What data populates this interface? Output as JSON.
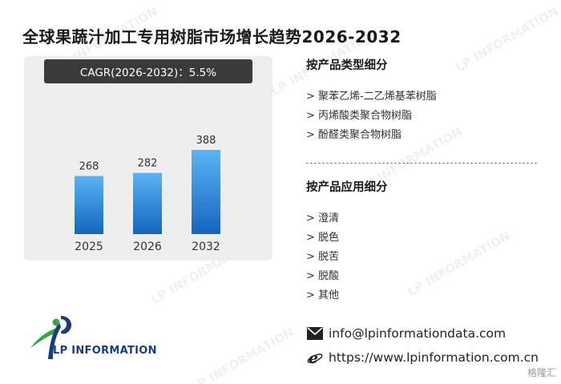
{
  "title": "全球果蔬汁加工专用树脂市场增长趋势2026-2032",
  "cagr": "CAGR(2026-2032)：5.5%",
  "colors": {
    "bar_top": "#5ab4f2",
    "bar_bottom": "#1565c0",
    "panel": "#eeeeee",
    "badge": "#3a3a3a"
  },
  "chart_data": {
    "type": "bar",
    "categories": [
      "2025",
      "2026",
      "2032"
    ],
    "values": [
      268,
      282,
      388
    ],
    "title": "",
    "xlabel": "",
    "ylabel": ""
  },
  "product_type": {
    "heading": "按产品类型细分",
    "items": [
      "> 聚苯乙烯-二乙烯基苯树脂",
      "> 丙烯酸类聚合物树脂",
      "> 酚醛类聚合物树脂"
    ]
  },
  "application": {
    "heading": "按产品应用细分",
    "items": [
      "> 澄清",
      "> 脱色",
      "> 脱苦",
      "> 脱酸",
      "> 其他"
    ]
  },
  "contact": {
    "email": "info@lpinformationdata.com",
    "website": "https://www.lpinformation.com.cn",
    "email_icon": "envelope-icon",
    "web_icon": "browser-e-icon"
  },
  "logo": {
    "text": "LP INFORMATION"
  },
  "watermark": "LP INFORMATION",
  "corner_label": "格隆汇"
}
